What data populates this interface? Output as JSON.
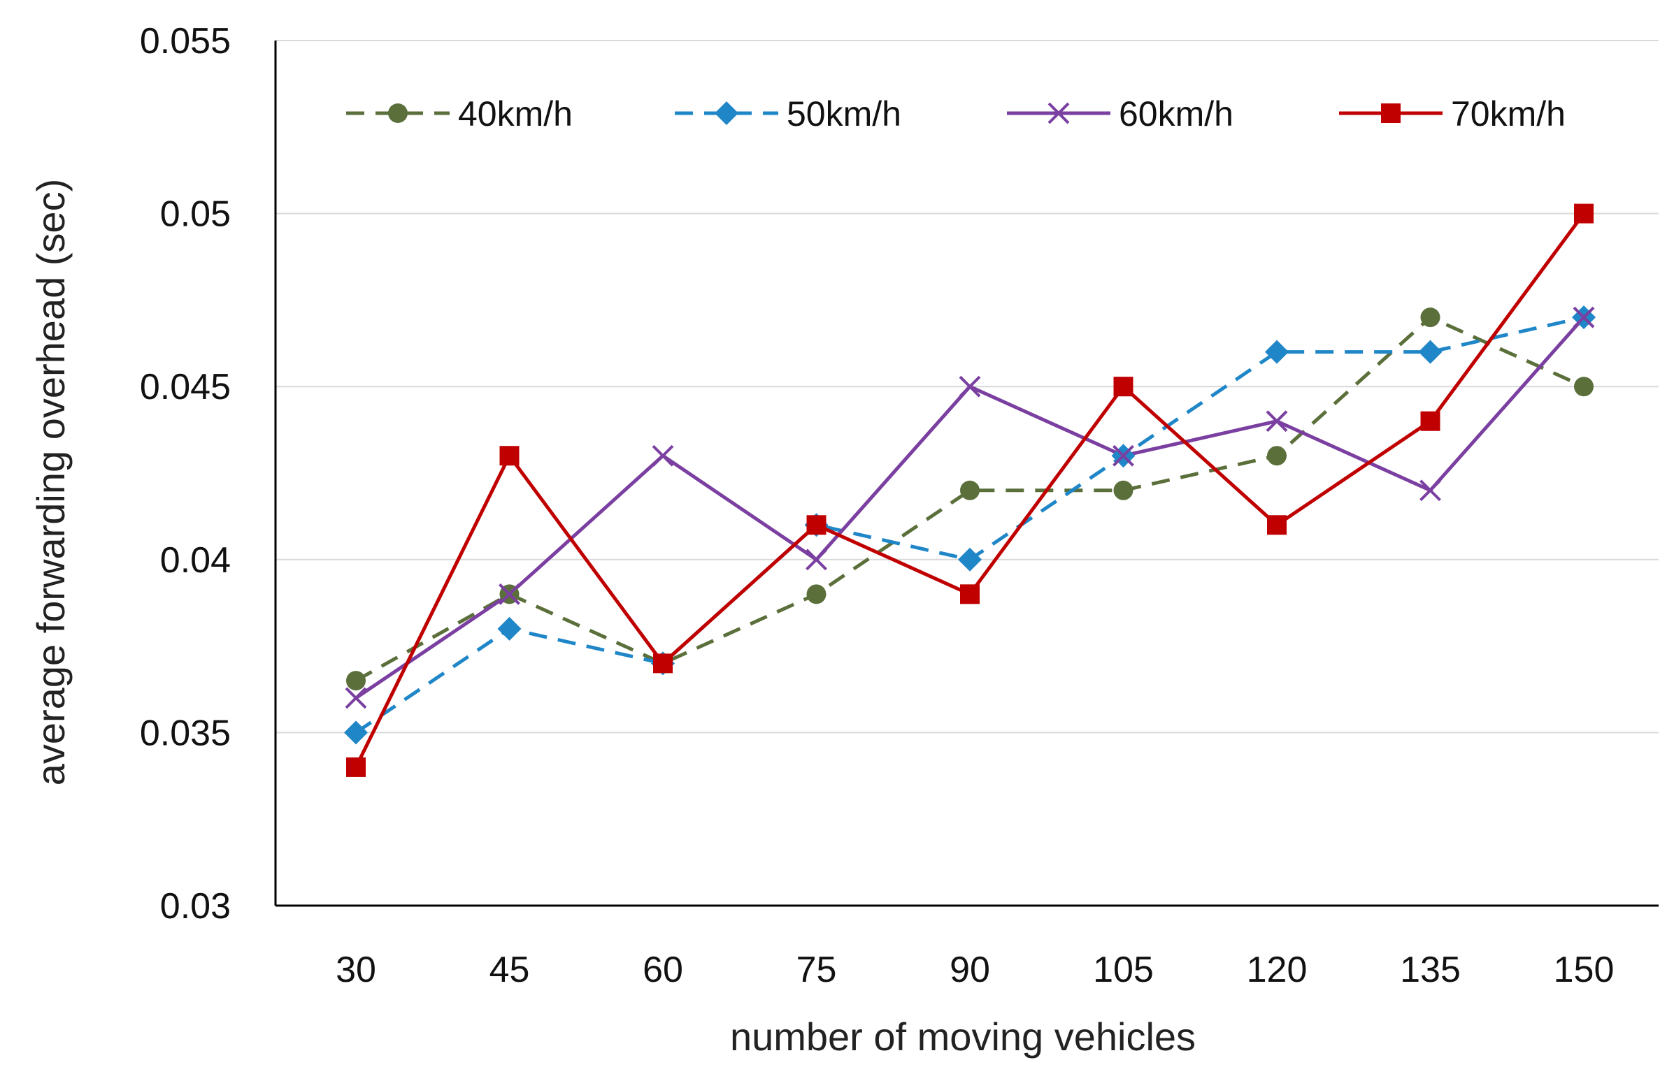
{
  "chart_data": {
    "type": "line",
    "title": "",
    "xlabel": "number of moving vehicles",
    "ylabel": "average forwarding overhead (sec)",
    "categories": [
      "30",
      "45",
      "60",
      "75",
      "90",
      "105",
      "120",
      "135",
      "150"
    ],
    "ylim": [
      0.03,
      0.055
    ],
    "yticks": [
      "0.03",
      "0.035",
      "0.04",
      "0.045",
      "0.05",
      "0.055"
    ],
    "ytick_values": [
      0.03,
      0.035,
      0.04,
      0.045,
      0.05,
      0.055
    ],
    "grid": true,
    "legend_position": "top",
    "series": [
      {
        "name": "40km/h",
        "color": "#5b6f3a",
        "line_style": "dashed",
        "marker": "circle",
        "values": [
          0.0365,
          0.039,
          0.037,
          0.039,
          0.042,
          0.042,
          0.043,
          0.047,
          0.045
        ]
      },
      {
        "name": "50km/h",
        "color": "#1f86c8",
        "line_style": "dashed",
        "marker": "diamond",
        "values": [
          0.035,
          0.038,
          0.037,
          0.041,
          0.04,
          0.043,
          0.046,
          0.046,
          0.047
        ]
      },
      {
        "name": "60km/h",
        "color": "#7a3fa0",
        "line_style": "solid",
        "marker": "x",
        "values": [
          0.036,
          0.039,
          0.043,
          0.04,
          0.045,
          0.043,
          0.044,
          0.042,
          0.047
        ]
      },
      {
        "name": "70km/h",
        "color": "#c00000",
        "line_style": "solid",
        "marker": "square",
        "values": [
          0.034,
          0.043,
          0.037,
          0.041,
          0.039,
          0.045,
          0.041,
          0.044,
          0.05
        ]
      }
    ]
  }
}
